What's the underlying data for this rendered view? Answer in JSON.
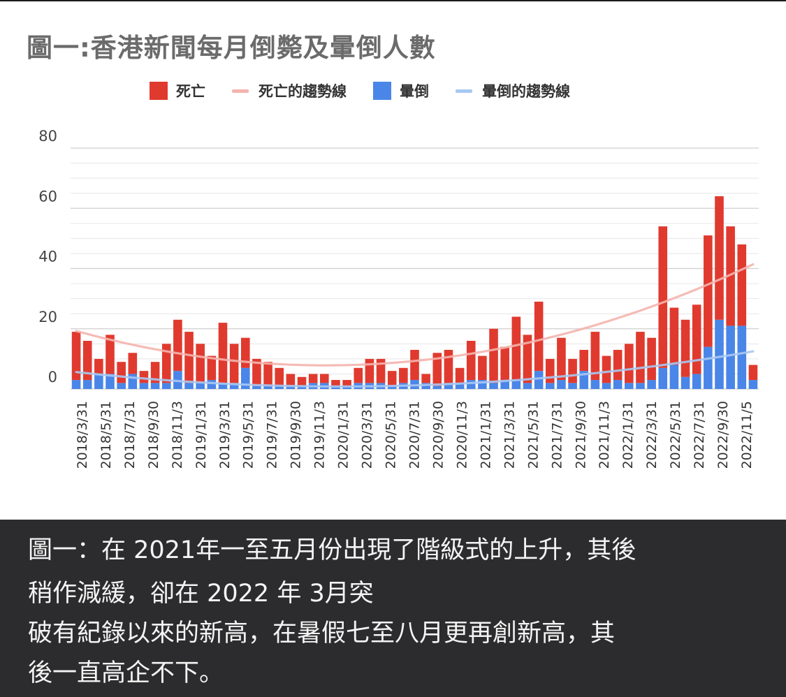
{
  "chart_data": {
    "type": "bar",
    "stacked": true,
    "title": "圖一:香港新聞每月倒斃及暈倒人數",
    "xlabel": "",
    "ylabel": "",
    "ylim": [
      0,
      80
    ],
    "y_ticks": [
      0,
      20,
      40,
      60,
      80
    ],
    "grid": true,
    "legend_position": "top",
    "x_tick_labels": [
      "2018/3/31",
      "2018/5/31",
      "2018/7/31",
      "2018/9/30",
      "2018/11/3",
      "2019/1/31",
      "2019/3/31",
      "2019/5/31",
      "2019/7/31",
      "2019/9/30",
      "2019/11/3",
      "2020/1/31",
      "2020/3/31",
      "2020/5/31",
      "2020/7/31",
      "2020/9/30",
      "2020/11/3",
      "2021/1/31",
      "2021/3/31",
      "2021/5/31",
      "2021/7/31",
      "2021/9/30",
      "2021/11/3",
      "2022/1/31",
      "2022/3/31",
      "2022/5/31",
      "2022/7/31",
      "2022/9/30",
      "2022/11/5"
    ],
    "series": [
      {
        "name": "暈倒",
        "color": "#4a86e8",
        "values": [
          3,
          3,
          5,
          5,
          2,
          5,
          2,
          2,
          2,
          6,
          2,
          2,
          3,
          2,
          2,
          7,
          1,
          1,
          1,
          1,
          1,
          2,
          2,
          1,
          1,
          2,
          2,
          2,
          1,
          2,
          3,
          2,
          1,
          2,
          2,
          3,
          3,
          2,
          3,
          3,
          2,
          6,
          2,
          3,
          2,
          6,
          3,
          2,
          3,
          2,
          2,
          3,
          7,
          8,
          4,
          5,
          14,
          23,
          21,
          21,
          3
        ]
      },
      {
        "name": "死亡",
        "color": "#e03a2f",
        "values": [
          16,
          13,
          5,
          13,
          7,
          7,
          4,
          7,
          13,
          17,
          17,
          13,
          8,
          20,
          13,
          10,
          9,
          8,
          6,
          4,
          3,
          3,
          3,
          2,
          2,
          5,
          8,
          8,
          5,
          5,
          10,
          3,
          11,
          11,
          5,
          13,
          8,
          18,
          11,
          21,
          16,
          23,
          8,
          14,
          8,
          7,
          16,
          9,
          10,
          13,
          17,
          14,
          47,
          19,
          19,
          23,
          37,
          41,
          33,
          27,
          5
        ]
      }
    ],
    "trendlines": [
      {
        "name": "死亡的趨勢線",
        "color": "#f4b4ae"
      },
      {
        "name": "暈倒的趨勢線",
        "color": "#a9c8f2"
      }
    ],
    "legend_entries": [
      "死亡",
      "死亡的趨勢線",
      "暈倒",
      "暈倒的趨勢線"
    ]
  },
  "caption": {
    "lines": [
      "圖一：在 2021年一至五月份出現了階級式的上升，其後",
      "稍作減緩，卻在 2022 年 3月突",
      "破有紀錄以來的新高，在暑假七至八月更再創新高，其",
      "後一直高企不下。"
    ]
  }
}
